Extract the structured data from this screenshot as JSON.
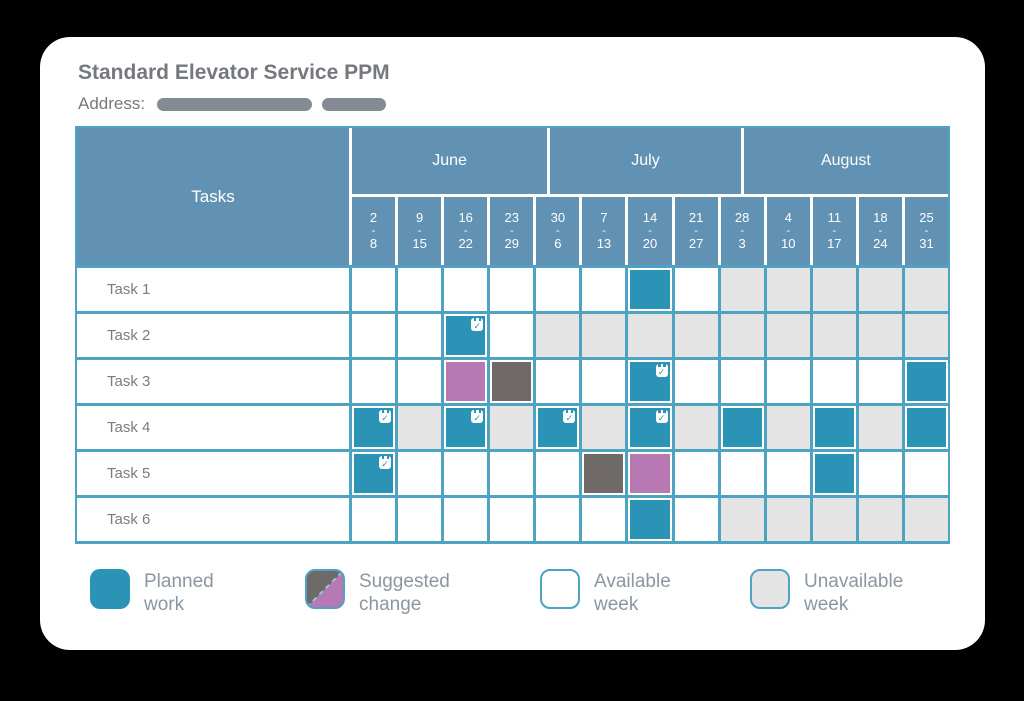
{
  "colors": {
    "planned": "#2B93B5",
    "suggested": "#B878B3",
    "suggested_old": "#6F6A68",
    "unavailable": "#E4E4E4",
    "available": "#FFFFFF",
    "header_blue": "#6191B3",
    "grid": "#4FA3C2",
    "title_text": "#75797E",
    "body_text": "#787D83",
    "legend_text": "#8C96A1",
    "redaction": "#848B93"
  },
  "header": {
    "title": "Standard Elevator Service PPM",
    "address_label": "Address:"
  },
  "table": {
    "tasks_header": "Tasks",
    "months": [
      {
        "label": "June",
        "span": 4.3
      },
      {
        "label": "July",
        "span": 4.2
      },
      {
        "label": "August",
        "span": 4.5
      }
    ],
    "weeks": [
      {
        "start": "2",
        "end": "8"
      },
      {
        "start": "9",
        "end": "15"
      },
      {
        "start": "16",
        "end": "22"
      },
      {
        "start": "23",
        "end": "29"
      },
      {
        "start": "30",
        "end": "6"
      },
      {
        "start": "7",
        "end": "13"
      },
      {
        "start": "14",
        "end": "20"
      },
      {
        "start": "21",
        "end": "27"
      },
      {
        "start": "28",
        "end": "3"
      },
      {
        "start": "4",
        "end": "10"
      },
      {
        "start": "11",
        "end": "17"
      },
      {
        "start": "18",
        "end": "24"
      },
      {
        "start": "25",
        "end": "31"
      }
    ],
    "cell_types": {
      "a": "available-week",
      "u": "unavailable-week",
      "p": "planned-work",
      "pc": "planned-work-confirmed",
      "sn": "suggested-change-new",
      "so": "suggested-change-old"
    },
    "rows": [
      {
        "label": "Task 1",
        "cells": [
          "a",
          "a",
          "a",
          "a",
          "a",
          "a",
          "p",
          "a",
          "u",
          "u",
          "u",
          "u",
          "u"
        ]
      },
      {
        "label": "Task 2",
        "cells": [
          "a",
          "a",
          "pc",
          "a",
          "u",
          "u",
          "u",
          "u",
          "u",
          "u",
          "u",
          "u",
          "u"
        ]
      },
      {
        "label": "Task 3",
        "cells": [
          "a",
          "a",
          "sn",
          "so",
          "a",
          "a",
          "pc",
          "a",
          "a",
          "a",
          "a",
          "a",
          "p"
        ]
      },
      {
        "label": "Task 4",
        "cells": [
          "pc",
          "u",
          "pc",
          "u",
          "pc",
          "u",
          "pc",
          "u",
          "p",
          "u",
          "p",
          "u",
          "p"
        ]
      },
      {
        "label": "Task 5",
        "cells": [
          "pc",
          "a",
          "a",
          "a",
          "a",
          "so",
          "sn",
          "a",
          "a",
          "a",
          "p",
          "a",
          "a"
        ]
      },
      {
        "label": "Task 6",
        "cells": [
          "a",
          "a",
          "a",
          "a",
          "a",
          "a",
          "p",
          "a",
          "u",
          "u",
          "u",
          "u",
          "u"
        ]
      }
    ]
  },
  "legend": [
    {
      "type": "planned",
      "line1": "Planned",
      "line2": "work"
    },
    {
      "type": "suggested",
      "line1": "Suggested",
      "line2": "change"
    },
    {
      "type": "available",
      "line1": "Available",
      "line2": "week"
    },
    {
      "type": "unavailable",
      "line1": "Unavailable",
      "line2": "week"
    }
  ],
  "icons": {
    "check": "✓"
  }
}
